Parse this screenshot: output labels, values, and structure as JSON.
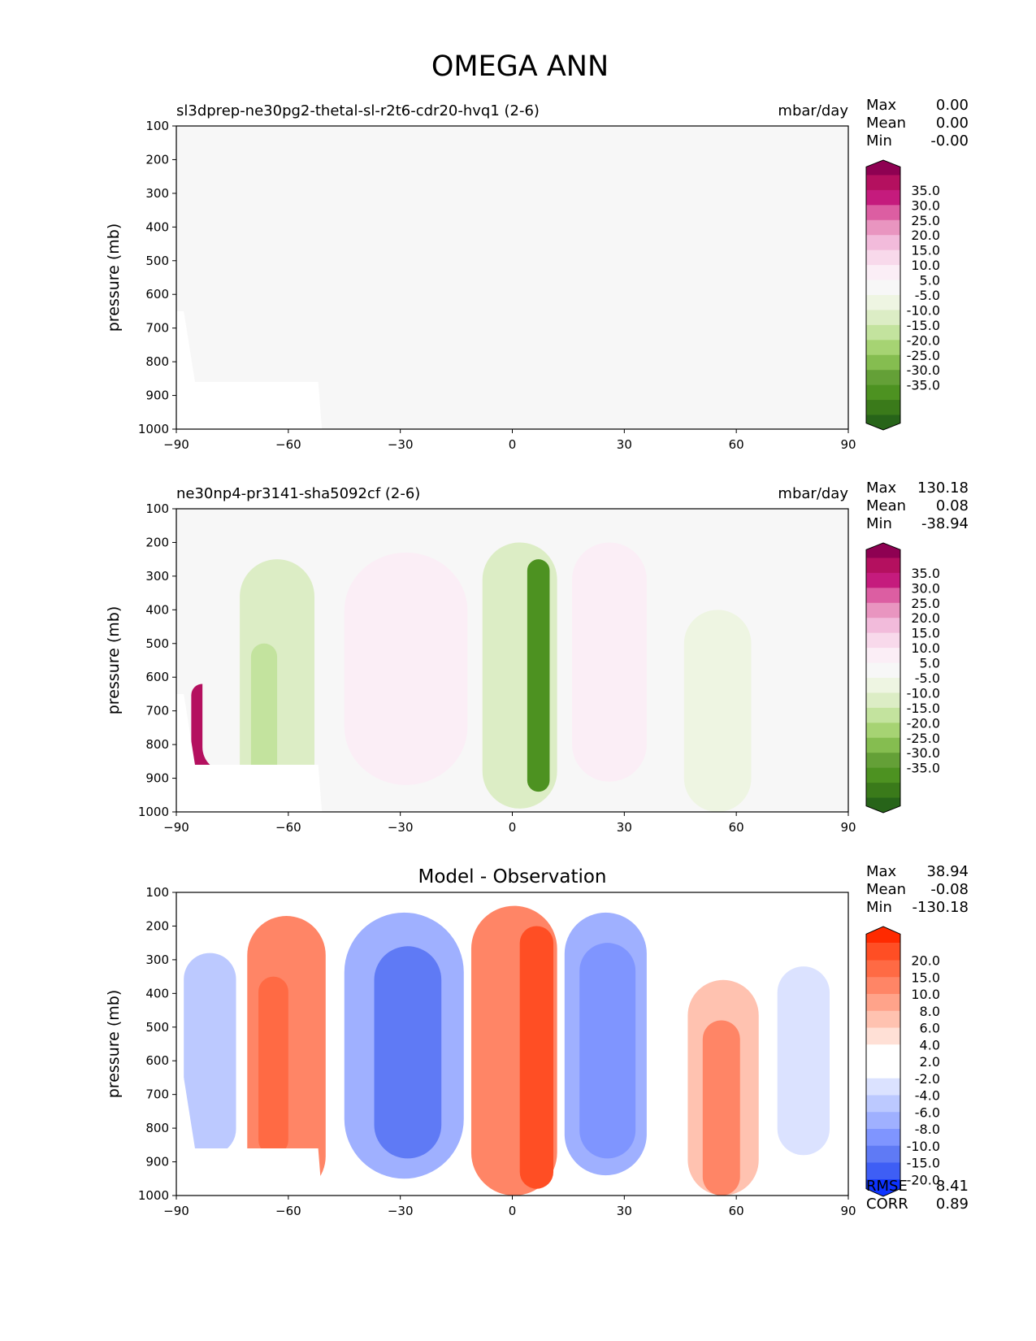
{
  "title": "OMEGA ANN",
  "stat_labels": {
    "max": "Max",
    "mean": "Mean",
    "min": "Min",
    "rmse": "RMSE",
    "corr": "CORR"
  },
  "chart_data": [
    {
      "type": "heatmap",
      "subtype": "filled-contour latitude-pressure",
      "left_title": "sl3dprep-ne30pg2-thetal-sl-r2t6-cdr20-hvq1 (2-6)",
      "right_title": "mbar/day",
      "center_title": "",
      "ylabel": "pressure (mb)",
      "xlim": [
        -90,
        90
      ],
      "ylim": [
        1000,
        100
      ],
      "x_ticks": [
        "−90",
        "−60",
        "−30",
        "0",
        "30",
        "60",
        "90"
      ],
      "y_ticks": [
        "100",
        "200",
        "300",
        "400",
        "500",
        "600",
        "700",
        "800",
        "900",
        "1000"
      ],
      "stats": {
        "max": "0.00",
        "mean": "0.00",
        "min": "-0.00"
      },
      "colorbar": {
        "labels": [
          "35.0",
          "30.0",
          "25.0",
          "20.0",
          "15.0",
          "10.0",
          "5.0",
          "-5.0",
          "-10.0",
          "-15.0",
          "-20.0",
          "-25.0",
          "-30.0",
          "-35.0"
        ],
        "colors": [
          "#8e0152",
          "#b4105f",
          "#c51b7d",
          "#dc5ea2",
          "#e995c0",
          "#f2bbdb",
          "#f8d9eb",
          "#fbeef6",
          "#f7f7f7",
          "#eef5e2",
          "#dcedc5",
          "#c3e39e",
          "#a6d373",
          "#85bd50",
          "#64a037",
          "#4d9221",
          "#3a7a1a",
          "#276419"
        ]
      },
      "fields": []
    },
    {
      "type": "heatmap",
      "subtype": "filled-contour latitude-pressure",
      "left_title": "ne30np4-pr3141-sha5092cf (2-6)",
      "right_title": "mbar/day",
      "center_title": "",
      "ylabel": "pressure (mb)",
      "xlim": [
        -90,
        90
      ],
      "ylim": [
        1000,
        100
      ],
      "x_ticks": [
        "−90",
        "−60",
        "−30",
        "0",
        "30",
        "60",
        "90"
      ],
      "y_ticks": [
        "100",
        "200",
        "300",
        "400",
        "500",
        "600",
        "700",
        "800",
        "900",
        "1000"
      ],
      "stats": {
        "max": "130.18",
        "mean": "0.08",
        "min": "-38.94"
      },
      "colorbar": {
        "labels": [
          "35.0",
          "30.0",
          "25.0",
          "20.0",
          "15.0",
          "10.0",
          "5.0",
          "-5.0",
          "-10.0",
          "-15.0",
          "-20.0",
          "-25.0",
          "-30.0",
          "-35.0"
        ],
        "colors": [
          "#8e0152",
          "#b4105f",
          "#c51b7d",
          "#dc5ea2",
          "#e995c0",
          "#f2bbdb",
          "#f8d9eb",
          "#fbeef6",
          "#f7f7f7",
          "#eef5e2",
          "#dcedc5",
          "#c3e39e",
          "#a6d373",
          "#85bd50",
          "#64a037",
          "#4d9221",
          "#3a7a1a",
          "#276419"
        ]
      },
      "fields": [
        {
          "name": "south polar downdraft",
          "lat": [
            -86,
            -80
          ],
          "p": [
            620,
            880
          ],
          "value": 40
        },
        {
          "name": "southern midlatitude descent",
          "lat": [
            -83,
            -70
          ],
          "p": [
            360,
            880
          ],
          "value": 5
        },
        {
          "name": "southern storm-track ascent",
          "lat": [
            -73,
            -53
          ],
          "p": [
            250,
            1000
          ],
          "value": -10
        },
        {
          "name": "southern storm-track ascent core",
          "lat": [
            -70,
            -63
          ],
          "p": [
            500,
            900
          ],
          "value": -15
        },
        {
          "name": "southern subtropical descent",
          "lat": [
            -45,
            -12
          ],
          "p": [
            230,
            920
          ],
          "value": 10
        },
        {
          "name": "ITCZ ascent",
          "lat": [
            -8,
            12
          ],
          "p": [
            200,
            990
          ],
          "value": -10
        },
        {
          "name": "ITCZ ascent core",
          "lat": [
            4,
            10
          ],
          "p": [
            250,
            940
          ],
          "value": -35
        },
        {
          "name": "northern subtropical descent",
          "lat": [
            16,
            36
          ],
          "p": [
            200,
            910
          ],
          "value": 10
        },
        {
          "name": "northern storm-track ascent",
          "lat": [
            46,
            64
          ],
          "p": [
            400,
            1000
          ],
          "value": -5
        },
        {
          "name": "arctic descent",
          "lat": [
            77,
            81
          ],
          "p": [
            720,
            880
          ],
          "value": 5
        }
      ]
    },
    {
      "type": "heatmap",
      "subtype": "filled-contour latitude-pressure",
      "left_title": "",
      "right_title": "",
      "center_title": "Model - Observation",
      "ylabel": "pressure (mb)",
      "xlim": [
        -90,
        90
      ],
      "ylim": [
        1000,
        100
      ],
      "x_ticks": [
        "−90",
        "−60",
        "−30",
        "0",
        "30",
        "60",
        "90"
      ],
      "y_ticks": [
        "100",
        "200",
        "300",
        "400",
        "500",
        "600",
        "700",
        "800",
        "900",
        "1000"
      ],
      "stats": {
        "max": "38.94",
        "mean": "-0.08",
        "min": "-130.18"
      },
      "rmse": "8.41",
      "corr": "0.89",
      "colorbar": {
        "labels": [
          "20.0",
          "15.0",
          "10.0",
          "8.0",
          "6.0",
          "4.0",
          "2.0",
          "-2.0",
          "-4.0",
          "-6.0",
          "-8.0",
          "-10.0",
          "-15.0",
          "-20.0"
        ],
        "colors": [
          "#ff2a00",
          "#ff4e24",
          "#ff6a44",
          "#ff8566",
          "#ffa38a",
          "#ffc2b0",
          "#ffe0d6",
          "#ffffff",
          "#ffffff",
          "#dbe2ff",
          "#bcc9ff",
          "#9fb0ff",
          "#7f95ff",
          "#5f7af5",
          "#3e5ef5",
          "#0d33ff"
        ]
      },
      "fields": [
        {
          "name": "south polar difference",
          "lat": [
            -86,
            -80
          ],
          "p": [
            620,
            880
          ],
          "value": -20
        },
        {
          "name": "southern high-latitude difference",
          "lat": [
            -88,
            -74
          ],
          "p": [
            280,
            880
          ],
          "value": -6
        },
        {
          "name": "southern storm-track difference",
          "lat": [
            -71,
            -50
          ],
          "p": [
            170,
            1000
          ],
          "value": 10
        },
        {
          "name": "southern storm-track difference core",
          "lat": [
            -68,
            -60
          ],
          "p": [
            350,
            880
          ],
          "value": 15
        },
        {
          "name": "southern subtropical difference",
          "lat": [
            -45,
            -13
          ],
          "p": [
            160,
            950
          ],
          "value": -8
        },
        {
          "name": "southern subtropical difference core",
          "lat": [
            -37,
            -19
          ],
          "p": [
            260,
            890
          ],
          "value": -15
        },
        {
          "name": "equatorial difference",
          "lat": [
            -11,
            12
          ],
          "p": [
            140,
            1000
          ],
          "value": 10
        },
        {
          "name": "equatorial difference core",
          "lat": [
            2,
            11
          ],
          "p": [
            200,
            980
          ],
          "value": 20
        },
        {
          "name": "northern subtropical difference",
          "lat": [
            14,
            36
          ],
          "p": [
            160,
            940
          ],
          "value": -8
        },
        {
          "name": "northern subtropical difference core",
          "lat": [
            18,
            33
          ],
          "p": [
            250,
            890
          ],
          "value": -10
        },
        {
          "name": "northern storm-track difference",
          "lat": [
            47,
            66
          ],
          "p": [
            360,
            1000
          ],
          "value": 6
        },
        {
          "name": "northern storm-track difference core",
          "lat": [
            51,
            61
          ],
          "p": [
            480,
            1000
          ],
          "value": 10
        },
        {
          "name": "arctic difference",
          "lat": [
            71,
            85
          ],
          "p": [
            320,
            880
          ],
          "value": -4
        }
      ]
    }
  ]
}
